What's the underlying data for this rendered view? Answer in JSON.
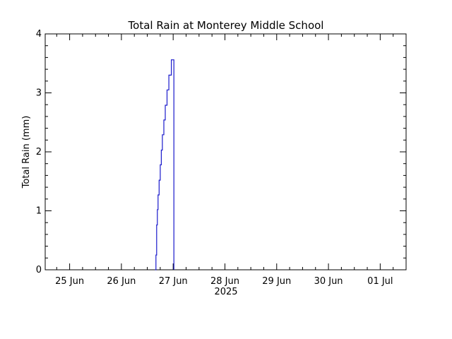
{
  "chart_data": {
    "type": "line",
    "title": "Total Rain at Monterey Middle School",
    "xlabel": "2025",
    "ylabel": "Total Rain (mm)",
    "xlim": [
      "2025-06-24T12:40",
      "2025-07-01T12:00"
    ],
    "ylim": [
      0,
      4
    ],
    "x_tick_labels": [
      "25 Jun",
      "26 Jun",
      "27 Jun",
      "28 Jun",
      "29 Jun",
      "30 Jun",
      "01 Jul"
    ],
    "x_ticks": [
      "2025-06-25",
      "2025-06-26",
      "2025-06-27",
      "2025-06-28",
      "2025-06-29",
      "2025-06-30",
      "2025-07-01"
    ],
    "y_tick_labels": [
      "0",
      "1",
      "2",
      "3",
      "4"
    ],
    "y_ticks": [
      0,
      1,
      2,
      3,
      4
    ],
    "line_style": "step",
    "grid": false,
    "series": [
      {
        "color": "#1a1acc",
        "x": [
          "2025-06-26T15:40",
          "2025-06-26T16:00",
          "2025-06-26T16:20",
          "2025-06-26T16:40",
          "2025-06-26T17:00",
          "2025-06-26T17:30",
          "2025-06-26T18:00",
          "2025-06-26T18:30",
          "2025-06-26T19:00",
          "2025-06-26T19:40",
          "2025-06-26T20:20",
          "2025-06-26T21:10",
          "2025-06-26T22:00",
          "2025-06-26T23:10",
          "2025-06-27T00:00",
          "2025-06-27T00:20"
        ],
        "y": [
          0,
          0.25,
          0.76,
          1.02,
          1.27,
          1.52,
          1.78,
          2.03,
          2.29,
          2.54,
          2.79,
          3.05,
          3.3,
          3.56,
          3.56,
          0
        ]
      }
    ]
  }
}
